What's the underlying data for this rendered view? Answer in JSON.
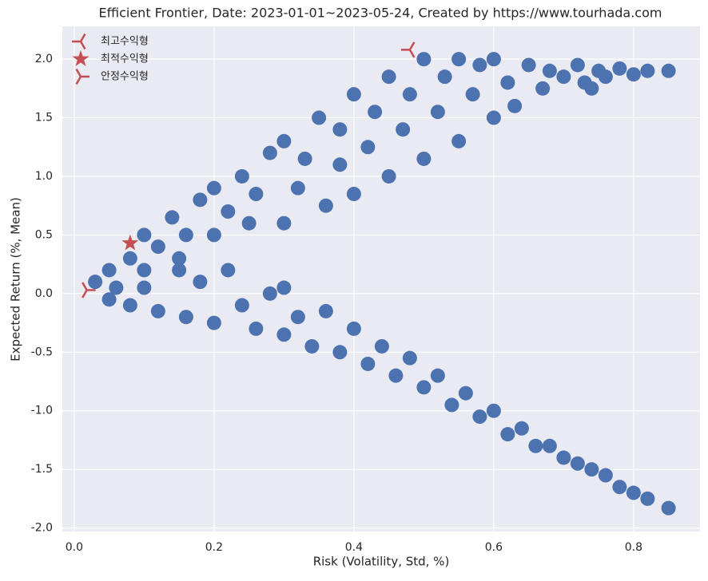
{
  "chart_data": {
    "type": "scatter",
    "title": "Efficient Frontier,  Date: 2023-01-01~2023-05-24, Created by https://www.tourhada.com",
    "xlabel": "Risk (Volatility, Std, %)",
    "ylabel": "Expected Return (%, Mean)",
    "xlim": [
      -0.017,
      0.895
    ],
    "ylim": [
      -2.03,
      2.28
    ],
    "xticks": [
      {
        "value": 0,
        "label": "0.0"
      },
      0.2,
      0.4,
      0.6,
      0.8
    ],
    "yticks": [
      {
        "value": -2,
        "label": "-2.0"
      },
      -1.5,
      {
        "value": -1,
        "label": "-1.0"
      },
      -0.5,
      {
        "value": 0,
        "label": "0.0"
      },
      0.5,
      {
        "value": 1,
        "label": "1.0"
      },
      1.5,
      {
        "value": 2,
        "label": "2.0"
      }
    ],
    "grid": true,
    "legend": "upper left",
    "points": {
      "color": "#4c72b0",
      "x": [
        0.03,
        0.05,
        0.06,
        0.08,
        0.1,
        0.1,
        0.12,
        0.14,
        0.15,
        0.16,
        0.18,
        0.2,
        0.2,
        0.22,
        0.24,
        0.25,
        0.26,
        0.28,
        0.3,
        0.3,
        0.32,
        0.33,
        0.35,
        0.36,
        0.38,
        0.38,
        0.4,
        0.4,
        0.42,
        0.43,
        0.45,
        0.45,
        0.47,
        0.48,
        0.5,
        0.5,
        0.52,
        0.53,
        0.55,
        0.55,
        0.57,
        0.58,
        0.6,
        0.6,
        0.62,
        0.63,
        0.65,
        0.67,
        0.68,
        0.7,
        0.72,
        0.73,
        0.75,
        0.76,
        0.78,
        0.8,
        0.82,
        0.85,
        0.74,
        0.05,
        0.08,
        0.1,
        0.12,
        0.15,
        0.16,
        0.18,
        0.2,
        0.22,
        0.24,
        0.26,
        0.28,
        0.3,
        0.3,
        0.32,
        0.34,
        0.36,
        0.38,
        0.4,
        0.42,
        0.44,
        0.46,
        0.48,
        0.5,
        0.52,
        0.54,
        0.56,
        0.58,
        0.6,
        0.62,
        0.64,
        0.66,
        0.68,
        0.7,
        0.72,
        0.74,
        0.76,
        0.78,
        0.8,
        0.82,
        0.85
      ],
      "y": [
        0.1,
        0.2,
        0.05,
        0.3,
        0.5,
        0.2,
        0.4,
        0.65,
        0.3,
        0.5,
        0.8,
        0.9,
        0.5,
        0.7,
        1.0,
        0.6,
        0.85,
        1.2,
        1.3,
        0.6,
        0.9,
        1.15,
        1.5,
        0.75,
        1.1,
        1.4,
        1.7,
        0.85,
        1.25,
        1.55,
        1.85,
        1.0,
        1.4,
        1.7,
        2.0,
        1.15,
        1.55,
        1.85,
        2.0,
        1.3,
        1.7,
        1.95,
        2.0,
        1.5,
        1.8,
        1.6,
        1.95,
        1.75,
        1.9,
        1.85,
        1.95,
        1.8,
        1.9,
        1.85,
        1.92,
        1.87,
        1.9,
        1.9,
        1.75,
        -0.05,
        -0.1,
        0.05,
        -0.15,
        0.2,
        -0.2,
        0.1,
        -0.25,
        0.2,
        -0.1,
        -0.3,
        0.0,
        -0.35,
        0.05,
        -0.2,
        -0.45,
        -0.15,
        -0.5,
        -0.3,
        -0.6,
        -0.45,
        -0.7,
        -0.55,
        -0.8,
        -0.7,
        -0.95,
        -0.85,
        -1.05,
        -1.0,
        -1.2,
        -1.15,
        -1.3,
        -1.3,
        -1.4,
        -1.45,
        -1.5,
        -1.55,
        -1.65,
        -1.7,
        -1.75,
        -1.83
      ]
    },
    "series": [
      {
        "name": "최고수익형",
        "color": "#c44e52",
        "x": [
          0.48
        ],
        "y": [
          2.08
        ]
      },
      {
        "name": "최적수익형",
        "color": "#c44e52",
        "x": [
          0.08
        ],
        "y": [
          0.43
        ]
      },
      {
        "name": "안정수익형",
        "color": "#c44e52",
        "x": [
          0.018
        ],
        "y": [
          0.03
        ]
      }
    ]
  }
}
